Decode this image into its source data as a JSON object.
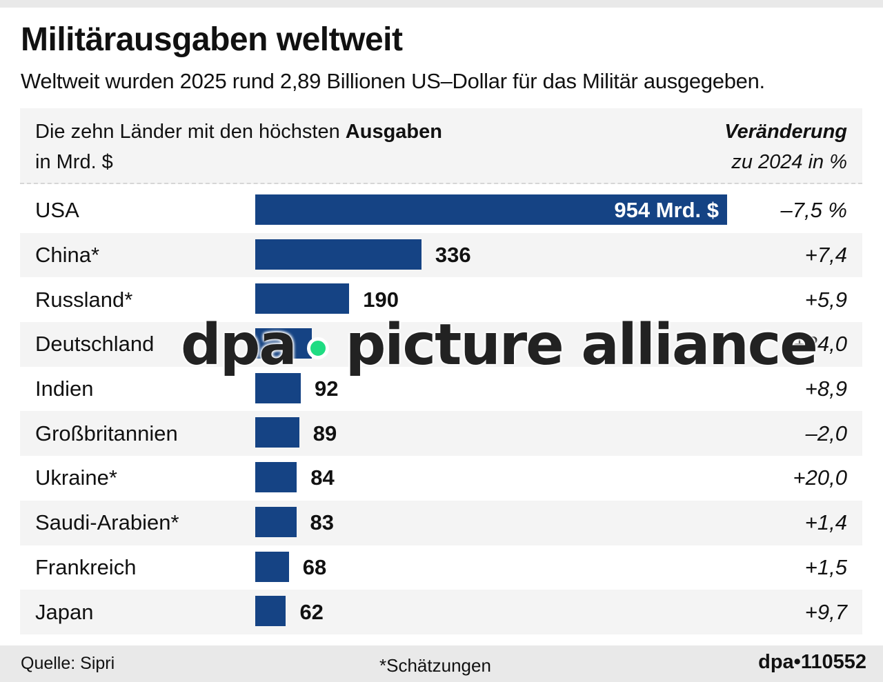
{
  "title": "Militärausgaben weltweit",
  "subtitle": "Weltweit wurden 2025 rund 2,89 Billionen US–Dollar für das Militär ausgegeben.",
  "header": {
    "left_line1_prefix": "Die zehn Länder mit den höchsten ",
    "left_line1_bold": "Ausgaben",
    "left_line2": "in Mrd. $",
    "right_line1": "Veränderung",
    "right_line2": "zu 2024 in %"
  },
  "bar_color": "#154384",
  "watermark": {
    "left": "dpa",
    "right": "picture alliance",
    "dot_color": "#1fdc82"
  },
  "footer": {
    "source": "Quelle: Sipri",
    "note": "*Schätzungen",
    "code": "dpa•110552"
  },
  "chart_data": {
    "type": "bar",
    "orientation": "horizontal",
    "title": "Militärausgaben weltweit",
    "subtitle": "Weltweit wurden 2025 rund 2,89 Billionen US–Dollar für das Militär ausgegeben.",
    "xlabel": "in Mrd. $",
    "ylabel": "",
    "xlim": [
      0,
      954
    ],
    "grid": false,
    "categories": [
      "USA",
      "China*",
      "Russland*",
      "Deutschland",
      "Indien",
      "Großbritannien",
      "Ukraine*",
      "Saudi-Arabien*",
      "Frankreich",
      "Japan"
    ],
    "series": [
      {
        "name": "Ausgaben (Mrd. $)",
        "values": [
          954,
          336,
          190,
          114,
          92,
          89,
          84,
          83,
          68,
          62
        ],
        "labels": [
          "954 Mrd. $",
          "336",
          "190",
          "",
          "92",
          "89",
          "84",
          "83",
          "68",
          "62"
        ]
      },
      {
        "name": "Veränderung zu 2024 in %",
        "values": [
          -7.5,
          7.4,
          5.9,
          24.0,
          8.9,
          -2.0,
          20.0,
          1.4,
          1.5,
          9.7
        ],
        "labels": [
          "–7,5 %",
          "+7,4",
          "+5,9",
          "+24,0",
          "+8,9",
          "–2,0",
          "+20,0",
          "+1,4",
          "+1,5",
          "+9,7"
        ]
      }
    ]
  }
}
